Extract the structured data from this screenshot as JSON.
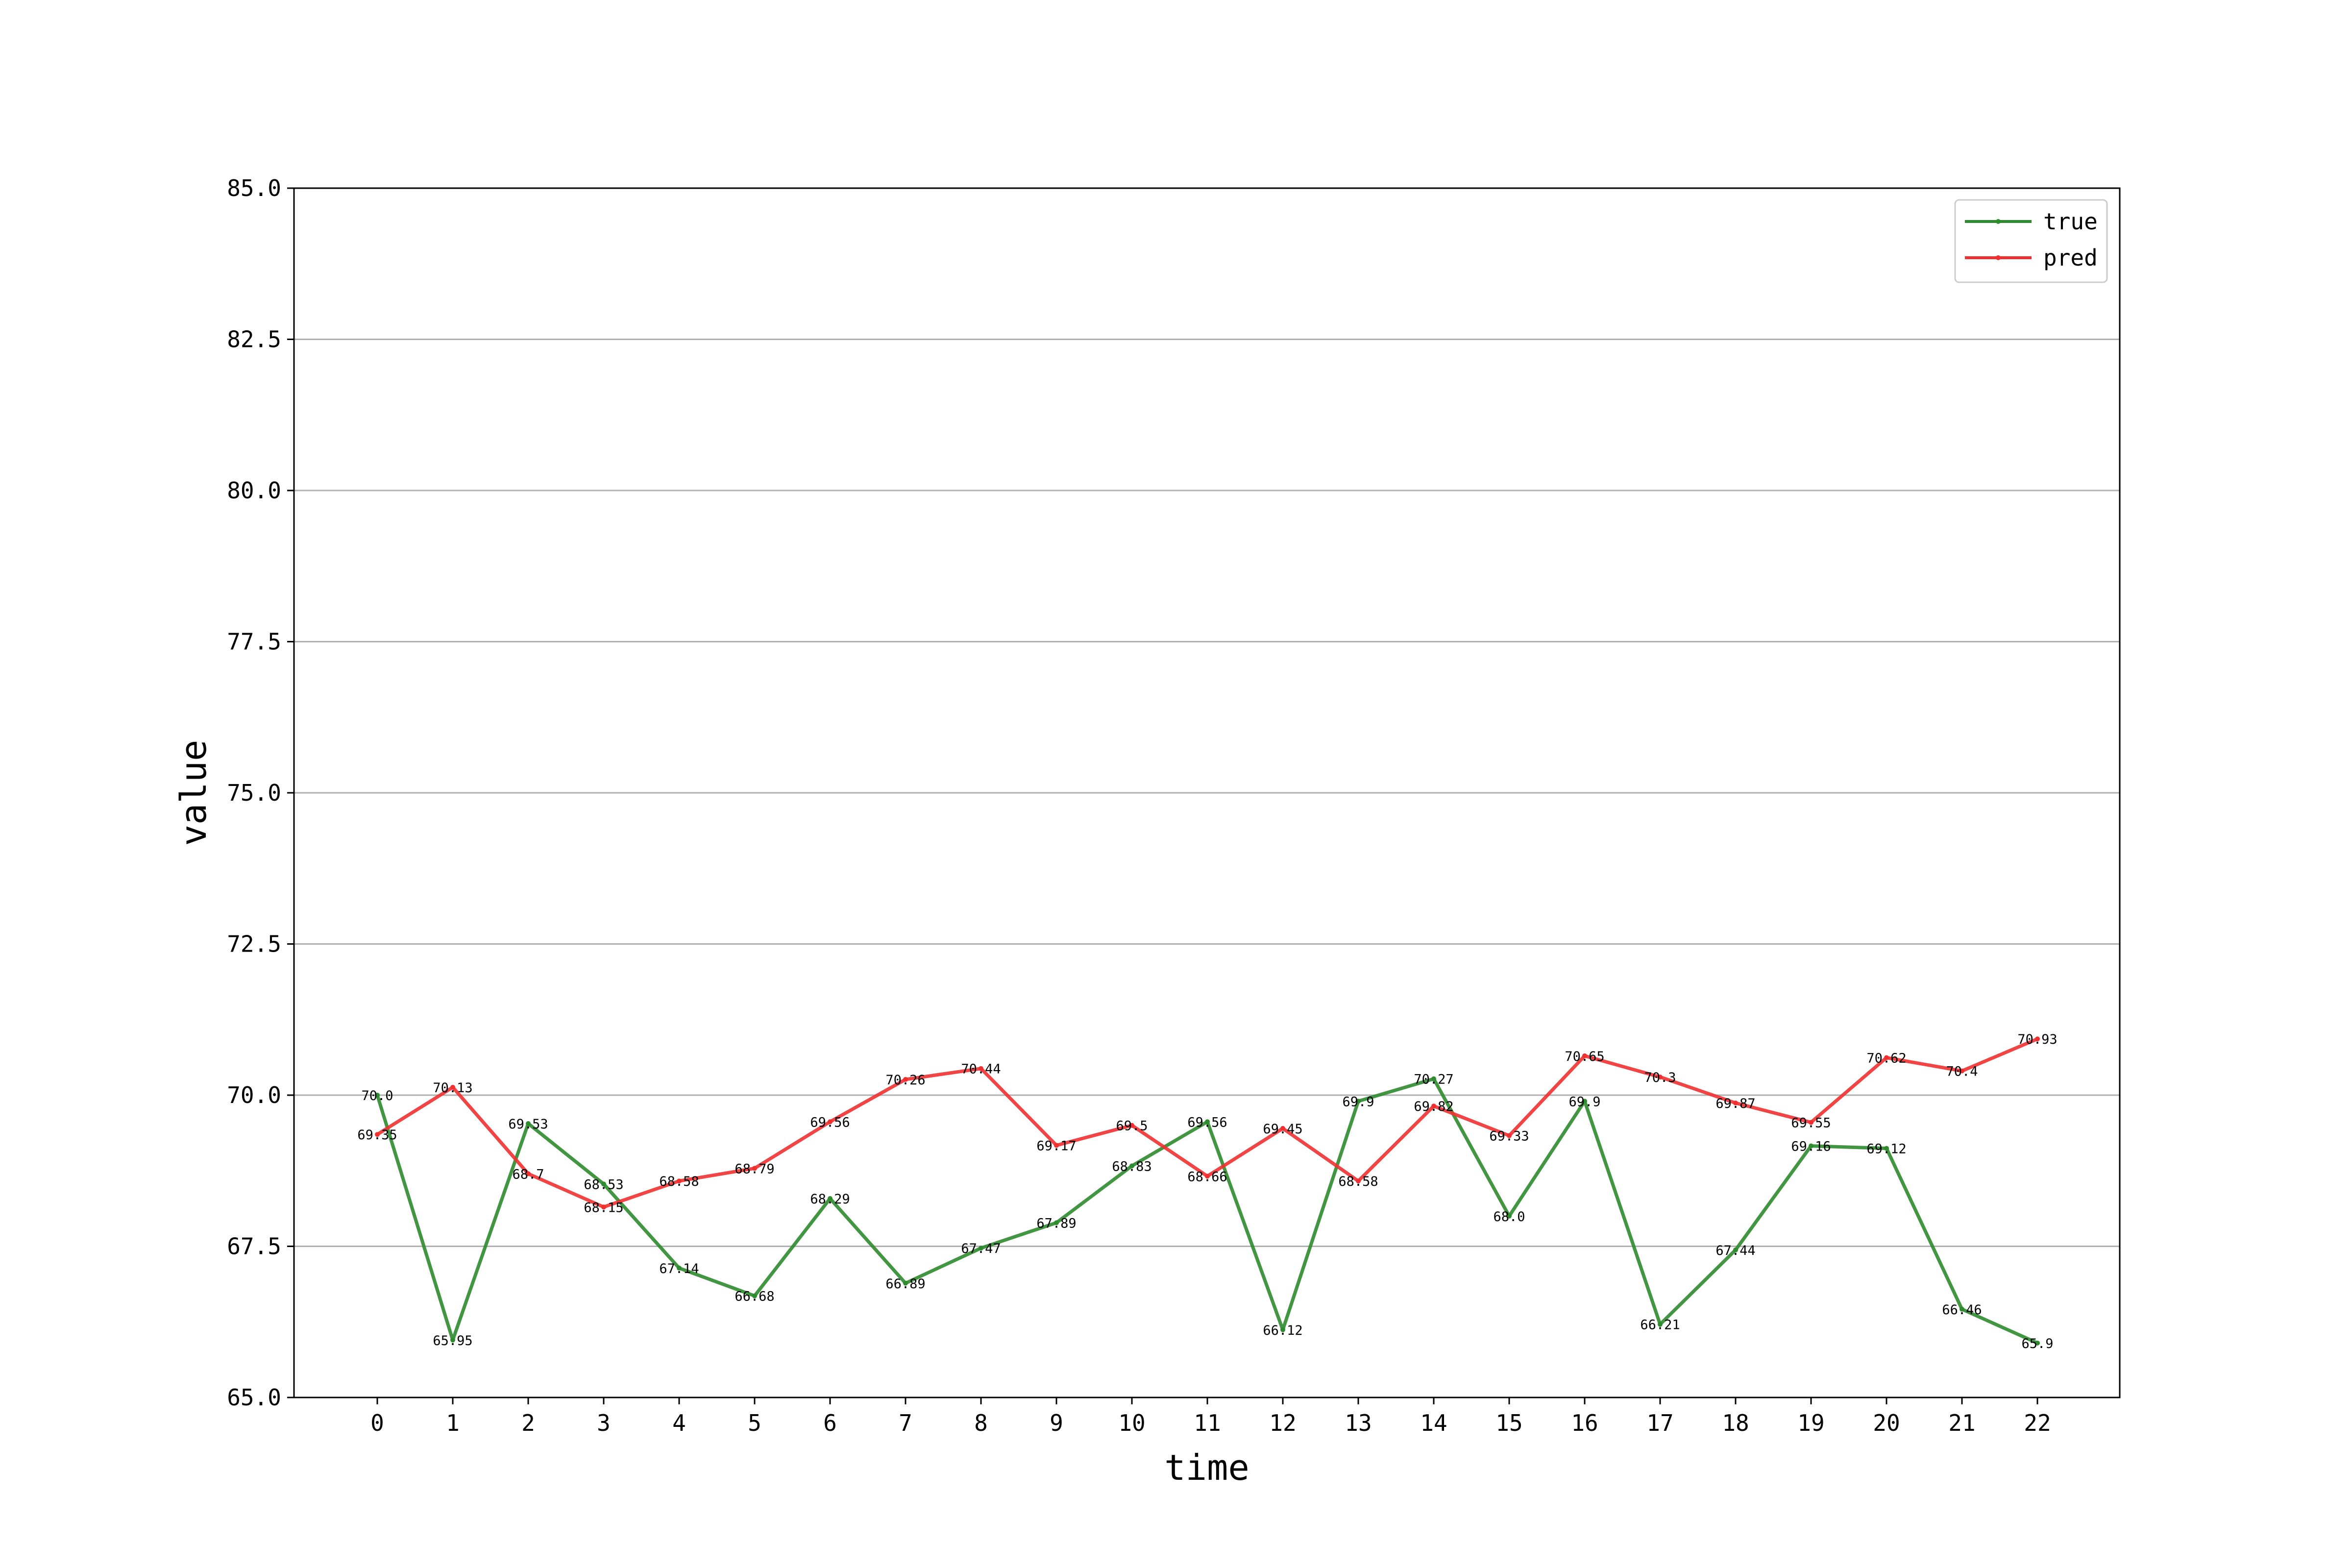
{
  "chart_data": {
    "type": "line",
    "title": "",
    "xlabel": "time",
    "ylabel": "value",
    "ylim": [
      65.0,
      85.0
    ],
    "yticks": [
      "65.0",
      "67.5",
      "70.0",
      "72.5",
      "75.0",
      "77.5",
      "80.0",
      "82.5",
      "85.0"
    ],
    "x": [
      0,
      1,
      2,
      3,
      4,
      5,
      6,
      7,
      8,
      9,
      10,
      11,
      12,
      13,
      14,
      15,
      16,
      17,
      18,
      19,
      20,
      21,
      22
    ],
    "grid": "horizontal",
    "legend_position": "top-right",
    "series": [
      {
        "name": "true",
        "color": "#2e8b2e",
        "values": [
          70.0,
          65.95,
          69.53,
          68.53,
          67.14,
          66.68,
          68.29,
          66.89,
          67.47,
          67.89,
          68.83,
          69.56,
          66.12,
          69.9,
          70.27,
          68.0,
          69.9,
          66.21,
          67.44,
          69.16,
          69.12,
          66.46,
          65.9
        ],
        "labels": [
          "70.0",
          "65.95",
          "69.53",
          "68.53",
          "67.14",
          "66.68",
          "68.29",
          "66.89",
          "67.47",
          "67.89",
          "68.83",
          "69.56",
          "66.12",
          "69.9",
          "70.27",
          "68.0",
          "69.9",
          "66.21",
          "67.44",
          "69.16",
          "69.12",
          "66.46",
          "65.9"
        ]
      },
      {
        "name": "pred",
        "color": "#f03030",
        "values": [
          69.35,
          70.13,
          68.7,
          68.15,
          68.58,
          68.79,
          69.56,
          70.26,
          70.44,
          69.17,
          69.5,
          68.66,
          69.45,
          68.58,
          69.82,
          69.33,
          70.65,
          70.3,
          69.87,
          69.55,
          70.62,
          70.4,
          70.93
        ],
        "labels": [
          "69.35",
          "70.13",
          "68.7",
          "68.15",
          "68.58",
          "68.79",
          "69.56",
          "70.26",
          "70.44",
          "69.17",
          "69.5",
          "68.66",
          "69.45",
          "68.58",
          "69.82",
          "69.33",
          "70.65",
          "70.3",
          "69.87",
          "69.55",
          "70.62",
          "70.4",
          "70.93"
        ]
      }
    ]
  }
}
